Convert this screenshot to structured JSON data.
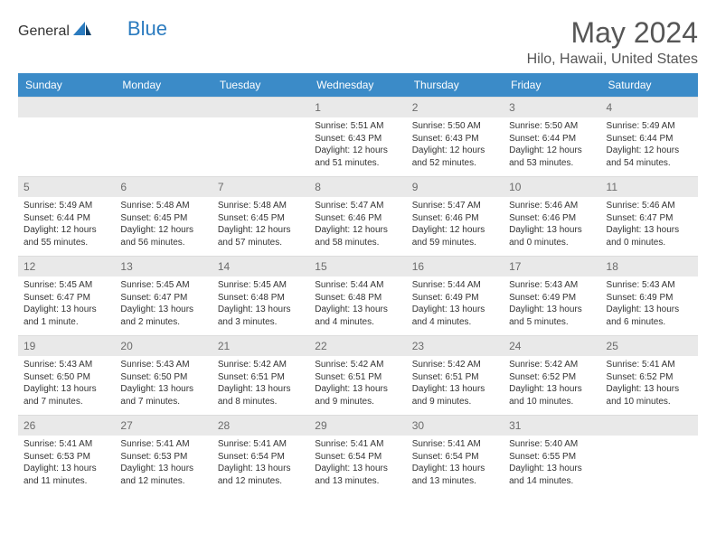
{
  "brand": {
    "general": "General",
    "blue": "Blue"
  },
  "title": "May 2024",
  "location": "Hilo, Hawaii, United States",
  "colors": {
    "header_bg": "#3b8bc8",
    "header_fg": "#ffffff",
    "daynum_bg": "#e9e9e9",
    "daynum_fg": "#6b6b6b",
    "text": "#333333",
    "brand_gray": "#6a6a6a",
    "brand_blue": "#2b7bbf"
  },
  "weekdays": [
    "Sunday",
    "Monday",
    "Tuesday",
    "Wednesday",
    "Thursday",
    "Friday",
    "Saturday"
  ],
  "weeks": [
    [
      {
        "n": "",
        "sr": "",
        "ss": "",
        "dl": ""
      },
      {
        "n": "",
        "sr": "",
        "ss": "",
        "dl": ""
      },
      {
        "n": "",
        "sr": "",
        "ss": "",
        "dl": ""
      },
      {
        "n": "1",
        "sr": "Sunrise: 5:51 AM",
        "ss": "Sunset: 6:43 PM",
        "dl": "Daylight: 12 hours and 51 minutes."
      },
      {
        "n": "2",
        "sr": "Sunrise: 5:50 AM",
        "ss": "Sunset: 6:43 PM",
        "dl": "Daylight: 12 hours and 52 minutes."
      },
      {
        "n": "3",
        "sr": "Sunrise: 5:50 AM",
        "ss": "Sunset: 6:44 PM",
        "dl": "Daylight: 12 hours and 53 minutes."
      },
      {
        "n": "4",
        "sr": "Sunrise: 5:49 AM",
        "ss": "Sunset: 6:44 PM",
        "dl": "Daylight: 12 hours and 54 minutes."
      }
    ],
    [
      {
        "n": "5",
        "sr": "Sunrise: 5:49 AM",
        "ss": "Sunset: 6:44 PM",
        "dl": "Daylight: 12 hours and 55 minutes."
      },
      {
        "n": "6",
        "sr": "Sunrise: 5:48 AM",
        "ss": "Sunset: 6:45 PM",
        "dl": "Daylight: 12 hours and 56 minutes."
      },
      {
        "n": "7",
        "sr": "Sunrise: 5:48 AM",
        "ss": "Sunset: 6:45 PM",
        "dl": "Daylight: 12 hours and 57 minutes."
      },
      {
        "n": "8",
        "sr": "Sunrise: 5:47 AM",
        "ss": "Sunset: 6:46 PM",
        "dl": "Daylight: 12 hours and 58 minutes."
      },
      {
        "n": "9",
        "sr": "Sunrise: 5:47 AM",
        "ss": "Sunset: 6:46 PM",
        "dl": "Daylight: 12 hours and 59 minutes."
      },
      {
        "n": "10",
        "sr": "Sunrise: 5:46 AM",
        "ss": "Sunset: 6:46 PM",
        "dl": "Daylight: 13 hours and 0 minutes."
      },
      {
        "n": "11",
        "sr": "Sunrise: 5:46 AM",
        "ss": "Sunset: 6:47 PM",
        "dl": "Daylight: 13 hours and 0 minutes."
      }
    ],
    [
      {
        "n": "12",
        "sr": "Sunrise: 5:45 AM",
        "ss": "Sunset: 6:47 PM",
        "dl": "Daylight: 13 hours and 1 minute."
      },
      {
        "n": "13",
        "sr": "Sunrise: 5:45 AM",
        "ss": "Sunset: 6:47 PM",
        "dl": "Daylight: 13 hours and 2 minutes."
      },
      {
        "n": "14",
        "sr": "Sunrise: 5:45 AM",
        "ss": "Sunset: 6:48 PM",
        "dl": "Daylight: 13 hours and 3 minutes."
      },
      {
        "n": "15",
        "sr": "Sunrise: 5:44 AM",
        "ss": "Sunset: 6:48 PM",
        "dl": "Daylight: 13 hours and 4 minutes."
      },
      {
        "n": "16",
        "sr": "Sunrise: 5:44 AM",
        "ss": "Sunset: 6:49 PM",
        "dl": "Daylight: 13 hours and 4 minutes."
      },
      {
        "n": "17",
        "sr": "Sunrise: 5:43 AM",
        "ss": "Sunset: 6:49 PM",
        "dl": "Daylight: 13 hours and 5 minutes."
      },
      {
        "n": "18",
        "sr": "Sunrise: 5:43 AM",
        "ss": "Sunset: 6:49 PM",
        "dl": "Daylight: 13 hours and 6 minutes."
      }
    ],
    [
      {
        "n": "19",
        "sr": "Sunrise: 5:43 AM",
        "ss": "Sunset: 6:50 PM",
        "dl": "Daylight: 13 hours and 7 minutes."
      },
      {
        "n": "20",
        "sr": "Sunrise: 5:43 AM",
        "ss": "Sunset: 6:50 PM",
        "dl": "Daylight: 13 hours and 7 minutes."
      },
      {
        "n": "21",
        "sr": "Sunrise: 5:42 AM",
        "ss": "Sunset: 6:51 PM",
        "dl": "Daylight: 13 hours and 8 minutes."
      },
      {
        "n": "22",
        "sr": "Sunrise: 5:42 AM",
        "ss": "Sunset: 6:51 PM",
        "dl": "Daylight: 13 hours and 9 minutes."
      },
      {
        "n": "23",
        "sr": "Sunrise: 5:42 AM",
        "ss": "Sunset: 6:51 PM",
        "dl": "Daylight: 13 hours and 9 minutes."
      },
      {
        "n": "24",
        "sr": "Sunrise: 5:42 AM",
        "ss": "Sunset: 6:52 PM",
        "dl": "Daylight: 13 hours and 10 minutes."
      },
      {
        "n": "25",
        "sr": "Sunrise: 5:41 AM",
        "ss": "Sunset: 6:52 PM",
        "dl": "Daylight: 13 hours and 10 minutes."
      }
    ],
    [
      {
        "n": "26",
        "sr": "Sunrise: 5:41 AM",
        "ss": "Sunset: 6:53 PM",
        "dl": "Daylight: 13 hours and 11 minutes."
      },
      {
        "n": "27",
        "sr": "Sunrise: 5:41 AM",
        "ss": "Sunset: 6:53 PM",
        "dl": "Daylight: 13 hours and 12 minutes."
      },
      {
        "n": "28",
        "sr": "Sunrise: 5:41 AM",
        "ss": "Sunset: 6:54 PM",
        "dl": "Daylight: 13 hours and 12 minutes."
      },
      {
        "n": "29",
        "sr": "Sunrise: 5:41 AM",
        "ss": "Sunset: 6:54 PM",
        "dl": "Daylight: 13 hours and 13 minutes."
      },
      {
        "n": "30",
        "sr": "Sunrise: 5:41 AM",
        "ss": "Sunset: 6:54 PM",
        "dl": "Daylight: 13 hours and 13 minutes."
      },
      {
        "n": "31",
        "sr": "Sunrise: 5:40 AM",
        "ss": "Sunset: 6:55 PM",
        "dl": "Daylight: 13 hours and 14 minutes."
      },
      {
        "n": "",
        "sr": "",
        "ss": "",
        "dl": ""
      }
    ]
  ]
}
